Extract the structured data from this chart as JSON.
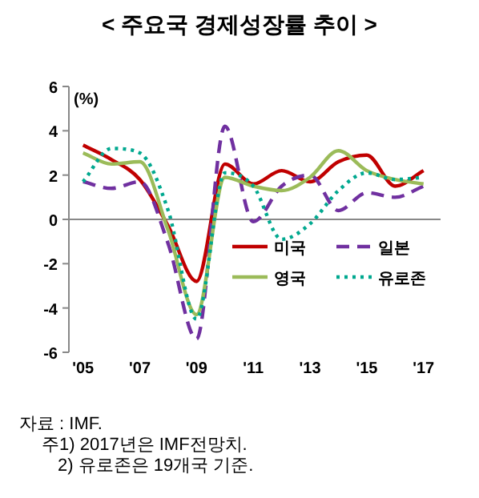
{
  "chart_data": {
    "type": "line",
    "title": "< 주요국 경제성장률 추이 >",
    "ylabel": "(%)",
    "x": [
      2005,
      2006,
      2007,
      2008,
      2009,
      2010,
      2011,
      2012,
      2013,
      2014,
      2015,
      2016,
      2017
    ],
    "xlim": [
      2004.5,
      2017.6
    ],
    "xticks": [
      {
        "value": 2005,
        "label": "'05"
      },
      {
        "value": 2007,
        "label": "'07"
      },
      {
        "value": 2009,
        "label": "'09"
      },
      {
        "value": 2011,
        "label": "'11"
      },
      {
        "value": 2013,
        "label": "'13"
      },
      {
        "value": 2015,
        "label": "'15"
      },
      {
        "value": 2017,
        "label": "'17"
      }
    ],
    "ylim": [
      -6,
      6
    ],
    "yticks": [
      -6,
      -4,
      -2,
      0,
      2,
      4,
      6
    ],
    "series": [
      {
        "name": "미국",
        "color": "#c00000",
        "line_style": "solid",
        "values": [
          3.35,
          2.7,
          1.8,
          -0.3,
          -2.8,
          2.5,
          1.6,
          2.2,
          1.7,
          2.6,
          2.9,
          1.5,
          2.2
        ]
      },
      {
        "name": "일본",
        "color": "#7030a0",
        "line_style": "dashed",
        "values": [
          1.7,
          1.4,
          1.7,
          -1.1,
          -5.4,
          4.2,
          -0.1,
          1.5,
          2.0,
          0.4,
          1.2,
          1.0,
          1.5
        ]
      },
      {
        "name": "영국",
        "color": "#9bbb59",
        "line_style": "solid",
        "values": [
          3.0,
          2.5,
          2.6,
          -0.5,
          -4.3,
          1.9,
          1.5,
          1.3,
          1.9,
          3.1,
          2.2,
          1.8,
          1.6
        ]
      },
      {
        "name": "유로존",
        "color": "#00a88f",
        "line_style": "dotted",
        "values": [
          1.7,
          3.2,
          3.0,
          0.4,
          -4.5,
          2.1,
          1.5,
          -0.9,
          -0.2,
          1.3,
          2.1,
          1.8,
          1.9
        ]
      }
    ],
    "ref_lines": [
      {
        "axis": "y",
        "value": 0,
        "color": "#888888"
      }
    ],
    "legend": "bottom right",
    "grid": false,
    "annotations": [
      "자료 : IMF.",
      "주1) 2017년은 IMF전망치.",
      "2) 유로존은 19개국 기준."
    ]
  }
}
